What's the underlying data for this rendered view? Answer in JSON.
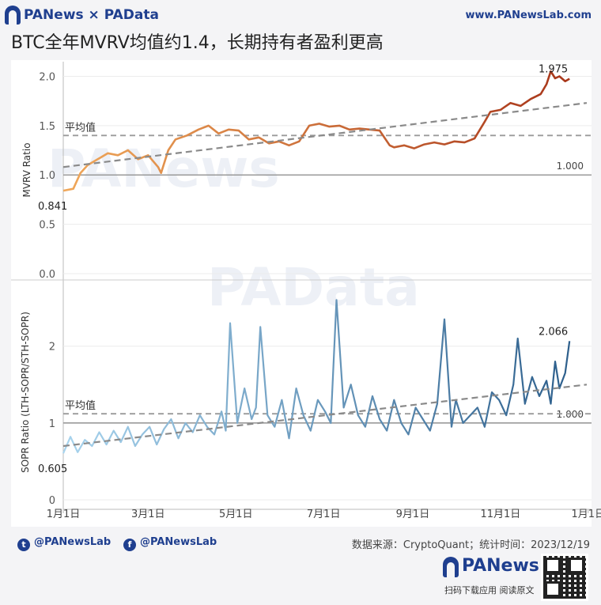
{
  "header": {
    "brand": "PANews × PAData",
    "site": "www.PANewsLab.com",
    "title": "BTC全年MVRV均值约1.4，长期持有者盈利更高"
  },
  "watermarks": [
    "PANews",
    "PAData"
  ],
  "footer": {
    "twitter": "@PANewsLab",
    "facebook": "@PANewsLab",
    "source": "数据来源：CryptoQuant；统计时间：2023/12/19",
    "logo": "PANews",
    "scan_text": "扫码下载应用  阅读原文"
  },
  "colors": {
    "mvrv_start": "#f0a85a",
    "mvrv_end": "#a8361a",
    "sopr_start": "#a8d4ee",
    "sopr_end": "#2d5f8c",
    "trend": "#8a8a8a",
    "brand": "#1f3f8f"
  },
  "chart_data": [
    {
      "type": "line",
      "ylabel": "MVRV Ratio",
      "ylim": [
        0,
        2.1
      ],
      "yticks": [
        "0.0",
        "0.5",
        "1.0",
        "1.5",
        "2.0"
      ],
      "ytick_values": [
        0,
        0.5,
        1.0,
        1.5,
        2.0
      ],
      "x_range": [
        "2023-01-01",
        "2023-12-19"
      ],
      "mean_label": "平均值",
      "mean_value": 1.4,
      "ref_label": "1.000",
      "ref_value": 1.0,
      "start_label": "0.841",
      "end_label": "1.975",
      "trend": [
        1.08,
        1.73
      ],
      "grid": true,
      "series": [
        {
          "x": [
            "2023-01-01",
            "2023-01-08",
            "2023-01-13",
            "2023-01-18",
            "2023-01-25",
            "2023-02-01",
            "2023-02-08",
            "2023-02-15",
            "2023-02-22",
            "2023-03-01",
            "2023-03-08",
            "2023-03-10",
            "2023-03-15",
            "2023-03-20",
            "2023-03-28",
            "2023-04-05",
            "2023-04-12",
            "2023-04-19",
            "2023-04-26",
            "2023-05-03",
            "2023-05-10",
            "2023-05-17",
            "2023-05-24",
            "2023-05-31",
            "2023-06-07",
            "2023-06-14",
            "2023-06-21",
            "2023-06-28",
            "2023-07-05",
            "2023-07-12",
            "2023-07-19",
            "2023-07-26",
            "2023-08-02",
            "2023-08-09",
            "2023-08-16",
            "2023-08-19",
            "2023-08-26",
            "2023-09-02",
            "2023-09-09",
            "2023-09-16",
            "2023-09-23",
            "2023-09-30",
            "2023-10-07",
            "2023-10-14",
            "2023-10-21",
            "2023-10-25",
            "2023-11-01",
            "2023-11-08",
            "2023-11-15",
            "2023-11-22",
            "2023-11-29",
            "2023-12-03",
            "2023-12-06",
            "2023-12-09",
            "2023-12-12",
            "2023-12-16",
            "2023-12-19"
          ],
          "y": [
            0.841,
            0.86,
            1.02,
            1.1,
            1.16,
            1.22,
            1.2,
            1.25,
            1.16,
            1.2,
            1.08,
            1.02,
            1.25,
            1.36,
            1.4,
            1.46,
            1.5,
            1.42,
            1.46,
            1.45,
            1.36,
            1.38,
            1.32,
            1.34,
            1.3,
            1.34,
            1.5,
            1.52,
            1.49,
            1.5,
            1.46,
            1.47,
            1.46,
            1.45,
            1.3,
            1.28,
            1.3,
            1.27,
            1.31,
            1.33,
            1.31,
            1.34,
            1.33,
            1.37,
            1.54,
            1.64,
            1.66,
            1.73,
            1.7,
            1.77,
            1.82,
            1.92,
            2.05,
            1.98,
            2.0,
            1.95,
            1.975
          ]
        }
      ]
    },
    {
      "type": "line",
      "ylabel": "SOPR Ratio (LTH-SOPR/STH-SOPR)",
      "ylim": [
        0,
        2.8
      ],
      "yticks": [
        "0",
        "1",
        "2"
      ],
      "ytick_values": [
        0,
        1,
        2
      ],
      "x_range": [
        "2023-01-01",
        "2023-12-19"
      ],
      "xticks": [
        "1月1日",
        "3月1日",
        "5月1日",
        "7月1日",
        "9月1日",
        "11月1日",
        "1月1日"
      ],
      "xtick_dates": [
        "2023-01-01",
        "2023-03-01",
        "2023-05-01",
        "2023-07-01",
        "2023-09-01",
        "2023-11-01",
        "2024-01-01"
      ],
      "mean_label": "平均值",
      "mean_value": 1.12,
      "ref_label": "1.000",
      "ref_value": 1.0,
      "start_label": "0.605",
      "end_label": "2.066",
      "trend": [
        0.7,
        1.5
      ],
      "grid": true,
      "series": [
        {
          "x": [
            "2023-01-01",
            "2023-01-06",
            "2023-01-11",
            "2023-01-16",
            "2023-01-21",
            "2023-01-26",
            "2023-01-31",
            "2023-02-05",
            "2023-02-10",
            "2023-02-15",
            "2023-02-20",
            "2023-02-25",
            "2023-03-02",
            "2023-03-07",
            "2023-03-12",
            "2023-03-17",
            "2023-03-22",
            "2023-03-27",
            "2023-04-01",
            "2023-04-06",
            "2023-04-11",
            "2023-04-16",
            "2023-04-21",
            "2023-04-24",
            "2023-04-27",
            "2023-05-02",
            "2023-05-07",
            "2023-05-12",
            "2023-05-15",
            "2023-05-18",
            "2023-05-23",
            "2023-05-28",
            "2023-06-02",
            "2023-06-07",
            "2023-06-12",
            "2023-06-17",
            "2023-06-22",
            "2023-06-27",
            "2023-07-02",
            "2023-07-06",
            "2023-07-10",
            "2023-07-15",
            "2023-07-20",
            "2023-07-25",
            "2023-07-30",
            "2023-08-04",
            "2023-08-09",
            "2023-08-14",
            "2023-08-19",
            "2023-08-24",
            "2023-08-29",
            "2023-09-03",
            "2023-09-08",
            "2023-09-13",
            "2023-09-18",
            "2023-09-23",
            "2023-09-28",
            "2023-10-01",
            "2023-10-06",
            "2023-10-11",
            "2023-10-16",
            "2023-10-21",
            "2023-10-26",
            "2023-10-31",
            "2023-11-05",
            "2023-11-10",
            "2023-11-13",
            "2023-11-18",
            "2023-11-23",
            "2023-11-28",
            "2023-12-03",
            "2023-12-06",
            "2023-12-09",
            "2023-12-12",
            "2023-12-16",
            "2023-12-19"
          ],
          "y": [
            0.605,
            0.82,
            0.62,
            0.78,
            0.7,
            0.88,
            0.72,
            0.9,
            0.75,
            0.95,
            0.7,
            0.85,
            0.95,
            0.72,
            0.92,
            1.05,
            0.8,
            1.0,
            0.88,
            1.1,
            0.95,
            0.85,
            1.15,
            0.9,
            2.3,
            1.0,
            1.45,
            1.05,
            1.2,
            2.25,
            1.1,
            0.95,
            1.3,
            0.8,
            1.45,
            1.1,
            0.9,
            1.3,
            1.15,
            1.0,
            2.6,
            1.2,
            1.5,
            1.1,
            0.95,
            1.35,
            1.05,
            0.9,
            1.3,
            1.0,
            0.85,
            1.2,
            1.05,
            0.9,
            1.25,
            2.35,
            0.95,
            1.3,
            1.0,
            1.1,
            1.2,
            0.95,
            1.4,
            1.3,
            1.1,
            1.5,
            2.1,
            1.25,
            1.6,
            1.35,
            1.55,
            1.25,
            1.8,
            1.45,
            1.65,
            2.066
          ]
        }
      ]
    }
  ]
}
